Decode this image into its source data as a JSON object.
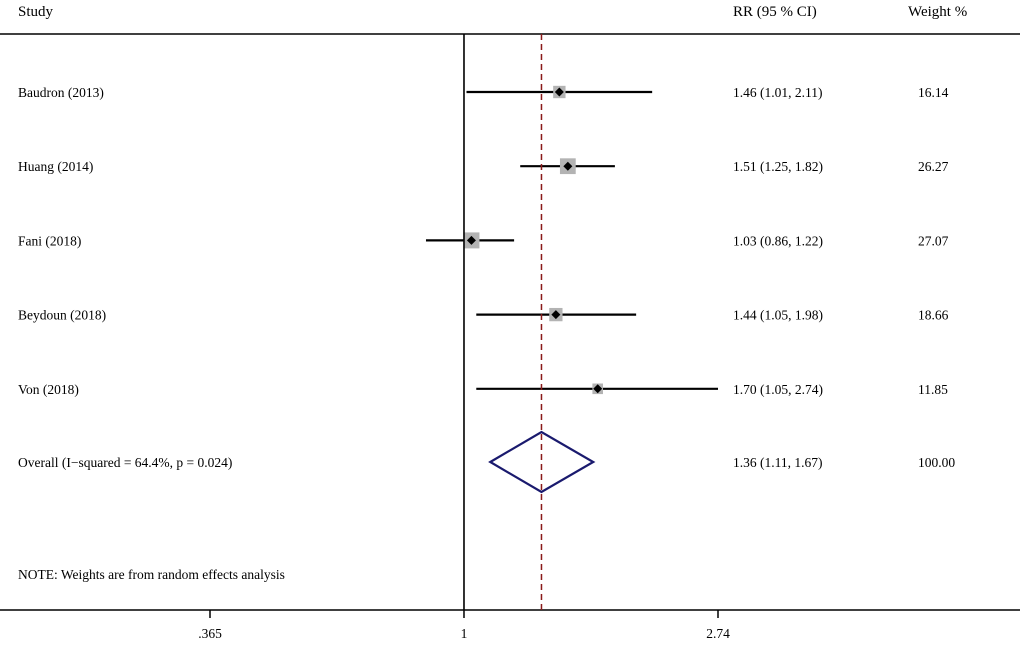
{
  "chart_data": {
    "type": "forest",
    "headers": {
      "study": "Study",
      "effect": "RR (95 % CI)",
      "weight": "Weight %"
    },
    "scale": "log",
    "xlim": [
      0.365,
      2.74
    ],
    "null_value": 1,
    "xticks": [
      {
        "value": 0.365,
        "label": ".365"
      },
      {
        "value": 1,
        "label": "1"
      },
      {
        "value": 2.74,
        "label": "2.74"
      }
    ],
    "studies": [
      {
        "label": "Baudron (2013)",
        "rr": 1.46,
        "lower": 1.01,
        "upper": 2.11,
        "ci_text": "1.46 (1.01, 2.11)",
        "weight": "16.14"
      },
      {
        "label": "Huang (2014)",
        "rr": 1.51,
        "lower": 1.25,
        "upper": 1.82,
        "ci_text": "1.51 (1.25, 1.82)",
        "weight": "26.27"
      },
      {
        "label": "Fani (2018)",
        "rr": 1.03,
        "lower": 0.86,
        "upper": 1.22,
        "ci_text": "1.03 (0.86, 1.22)",
        "weight": "27.07"
      },
      {
        "label": "Beydoun (2018)",
        "rr": 1.44,
        "lower": 1.05,
        "upper": 1.98,
        "ci_text": "1.44 (1.05, 1.98)",
        "weight": "18.66"
      },
      {
        "label": "Von (2018)",
        "rr": 1.7,
        "lower": 1.05,
        "upper": 2.74,
        "ci_text": "1.70 (1.05, 2.74)",
        "weight": "11.85"
      }
    ],
    "overall": {
      "label": "Overall  (I−squared = 64.4%, p = 0.024)",
      "rr": 1.36,
      "lower": 1.11,
      "upper": 1.67,
      "ci_text": "1.36 (1.11, 1.67)",
      "weight": "100.00"
    },
    "note": "NOTE: Weights are from random effects analysis",
    "colors": {
      "ci_line": "#000000",
      "marker": "#000000",
      "weight_box": "#b3b3b3",
      "overall_diamond": "#1a1a6e",
      "overall_line": "#8b1a1a",
      "axis": "#000000"
    }
  }
}
